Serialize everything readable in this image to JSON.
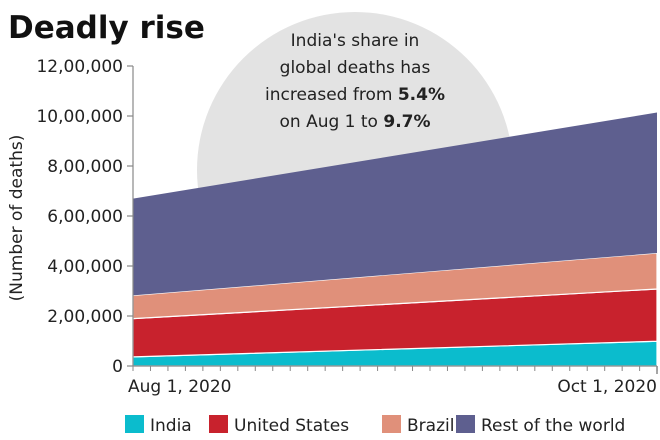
{
  "chart_data": {
    "type": "area",
    "stacked": true,
    "title": "Deadly rise",
    "xlabel": "",
    "ylabel": "(Number of deaths)",
    "x": [
      "Aug 1, 2020",
      "Oct 1, 2020"
    ],
    "x_tick_labels": [
      "Aug 1, 2020",
      "Oct 1, 2020"
    ],
    "y_ticks": [
      0,
      200000,
      400000,
      600000,
      800000,
      1000000,
      1200000
    ],
    "y_tick_labels": [
      "0",
      "2,00,000",
      "4,00,000",
      "6,00,000",
      "8,00,000",
      "10,00,000",
      "12,00,000"
    ],
    "ylim": [
      0,
      1200000
    ],
    "series": [
      {
        "name": "India",
        "color": "#0bbccd",
        "values": [
          36500,
          99000
        ]
      },
      {
        "name": "United States",
        "color": "#c8222d",
        "values": [
          153000,
          209000
        ]
      },
      {
        "name": "Brazil",
        "color": "#e0907a",
        "values": [
          93000,
          144000
        ]
      },
      {
        "name": "Rest of the world",
        "color": "#5e5f8f",
        "values": [
          387000,
          562000
        ]
      }
    ],
    "annotation": {
      "line1": "India's share in",
      "line2": "global deaths has",
      "line3_pre": "increased from ",
      "line3_bold": "5.4%",
      "line4_pre": "on Aug 1 to ",
      "line4_bold": "9.7%"
    },
    "legend_position": "bottom",
    "grid": false
  }
}
